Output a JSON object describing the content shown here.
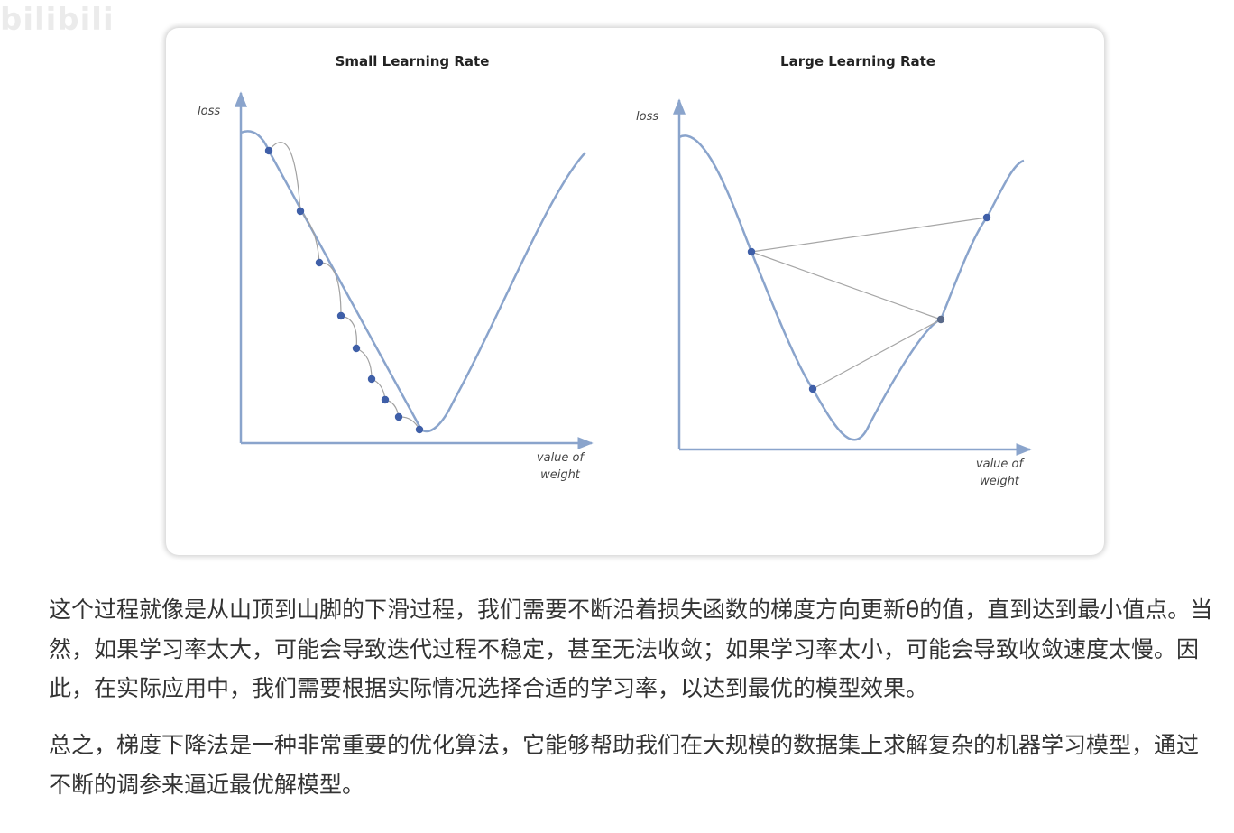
{
  "watermark": "bilibili",
  "figure": {
    "panels": [
      {
        "id": "small",
        "title": "Small Learning Rate",
        "y_label": "loss",
        "x_label_line1": "value of",
        "x_label_line2": "weight",
        "step_count": 8
      },
      {
        "id": "large",
        "title": "Large Learning Rate",
        "y_label": "loss",
        "x_label_line1": "value of",
        "x_label_line2": "weight",
        "step_count": 4
      }
    ],
    "colors": {
      "curve": "#8aa4cc",
      "axis": "#8aa4cc",
      "point": "#3f5fa8",
      "step_arc": "#a0a0a0"
    }
  },
  "text": {
    "paragraph_1": "这个过程就像是从山顶到山脚的下滑过程，我们需要不断沿着损失函数的梯度方向更新θ的值，直到达到最小值点。当然，如果学习率太大，可能会导致迭代过程不稳定，甚至无法收敛；如果学习率太小，可能会导致收敛速度太慢。因此，在实际应用中，我们需要根据实际情况选择合适的学习率，以达到最优的模型效果。",
    "paragraph_2": "总之，梯度下降法是一种非常重要的优化算法，它能够帮助我们在大规模的数据集上求解复杂的机器学习模型，通过不断的调参来逼近最优解模型。"
  }
}
